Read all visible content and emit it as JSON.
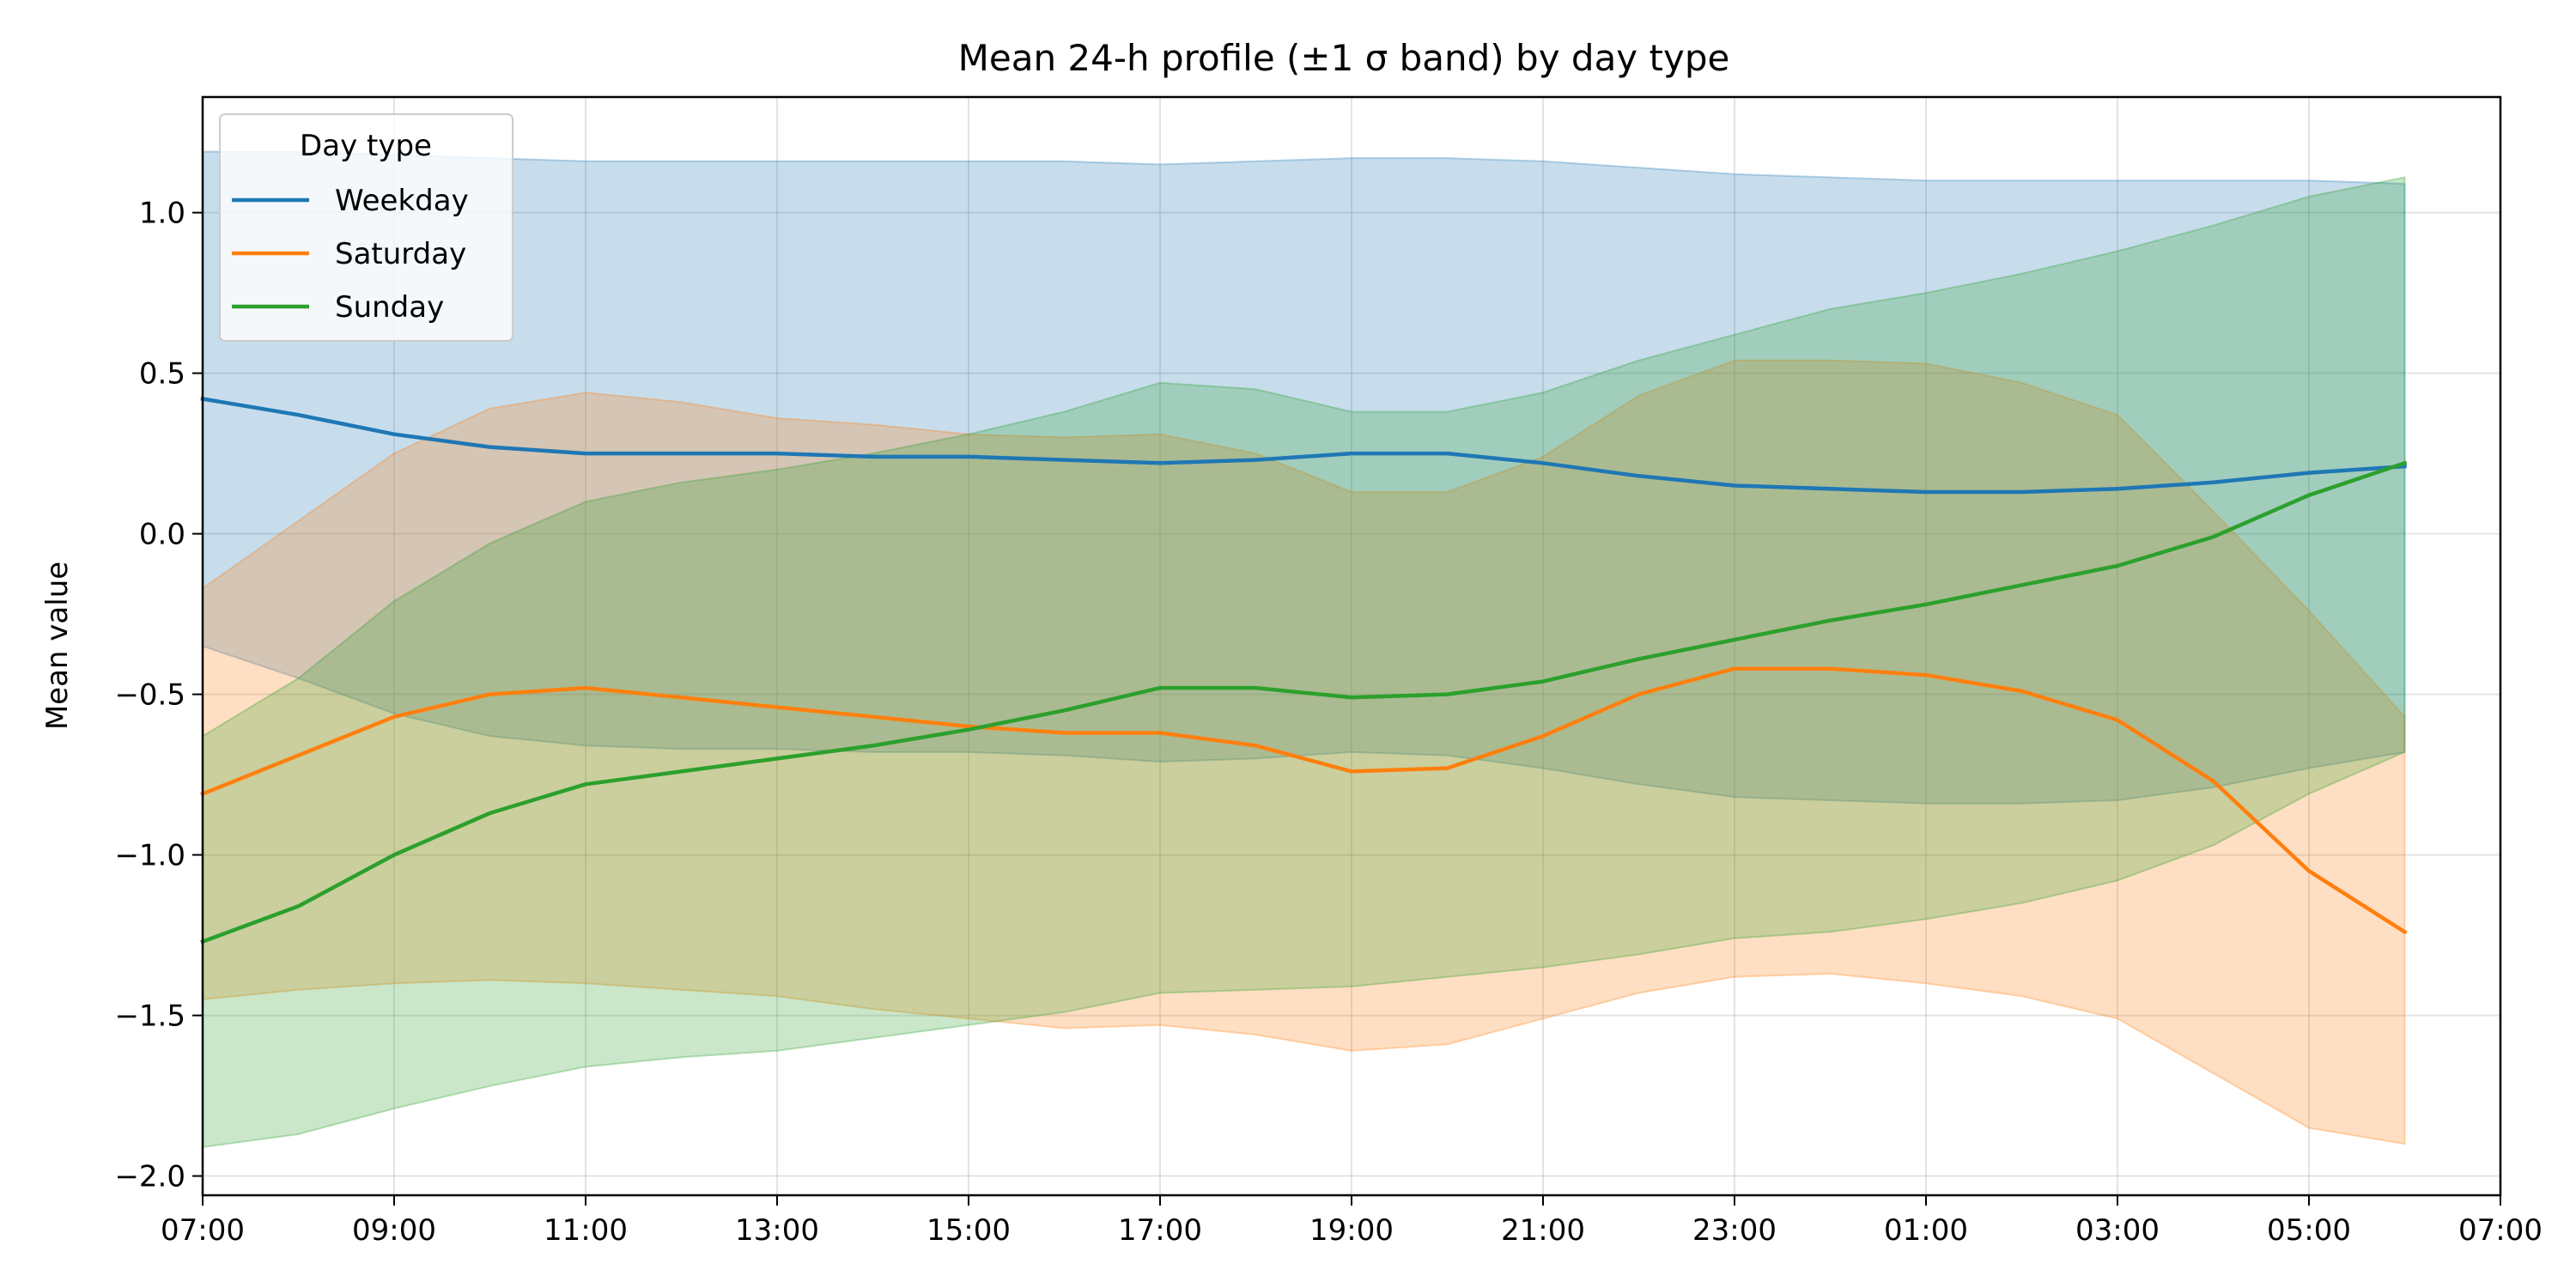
{
  "chart_data": {
    "type": "line",
    "title": "Mean 24-h profile (±1 σ band) by day type",
    "xlabel": "",
    "ylabel": "Mean value",
    "x": [
      "07:00",
      "08:00",
      "09:00",
      "10:00",
      "11:00",
      "12:00",
      "13:00",
      "14:00",
      "15:00",
      "16:00",
      "17:00",
      "18:00",
      "19:00",
      "20:00",
      "21:00",
      "22:00",
      "23:00",
      "00:00",
      "01:00",
      "02:00",
      "03:00",
      "04:00",
      "05:00",
      "06:00"
    ],
    "xticks": [
      "07:00",
      "09:00",
      "11:00",
      "13:00",
      "15:00",
      "17:00",
      "19:00",
      "21:00",
      "23:00",
      "01:00",
      "03:00",
      "05:00",
      "07:00"
    ],
    "xlim": [
      "07:00",
      "07:00 (next day)"
    ],
    "ylim": [
      -2.06,
      1.36
    ],
    "yticks": [
      1.0,
      0.5,
      0.0,
      -0.5,
      -1.0,
      -1.5,
      -2.0
    ],
    "ytick_labels": [
      "1.0",
      "0.5",
      "0.0",
      "−0.5",
      "−1.0",
      "−1.5",
      "−2.0"
    ],
    "grid": true,
    "legend": {
      "title": "Day type",
      "position": "top-left"
    },
    "series": [
      {
        "name": "Weekday",
        "color": "#1f77b4",
        "values": [
          0.42,
          0.37,
          0.31,
          0.27,
          0.25,
          0.25,
          0.25,
          0.24,
          0.24,
          0.23,
          0.22,
          0.23,
          0.25,
          0.25,
          0.22,
          0.18,
          0.15,
          0.14,
          0.13,
          0.13,
          0.14,
          0.16,
          0.19,
          0.21
        ],
        "upper": [
          1.19,
          1.19,
          1.18,
          1.17,
          1.16,
          1.16,
          1.16,
          1.16,
          1.16,
          1.16,
          1.15,
          1.16,
          1.17,
          1.17,
          1.16,
          1.14,
          1.12,
          1.11,
          1.1,
          1.1,
          1.1,
          1.1,
          1.1,
          1.09
        ],
        "lower": [
          -0.35,
          -0.45,
          -0.56,
          -0.63,
          -0.66,
          -0.67,
          -0.67,
          -0.68,
          -0.68,
          -0.69,
          -0.71,
          -0.7,
          -0.68,
          -0.69,
          -0.73,
          -0.78,
          -0.82,
          -0.83,
          -0.84,
          -0.84,
          -0.83,
          -0.79,
          -0.73,
          -0.68
        ]
      },
      {
        "name": "Saturday",
        "color": "#ff7f0e",
        "values": [
          -0.81,
          -0.69,
          -0.57,
          -0.5,
          -0.48,
          -0.51,
          -0.54,
          -0.57,
          -0.6,
          -0.62,
          -0.62,
          -0.66,
          -0.74,
          -0.73,
          -0.63,
          -0.5,
          -0.42,
          -0.42,
          -0.44,
          -0.49,
          -0.58,
          -0.77,
          -1.05,
          -1.24
        ],
        "upper": [
          -0.17,
          0.04,
          0.25,
          0.39,
          0.44,
          0.41,
          0.36,
          0.34,
          0.31,
          0.3,
          0.31,
          0.25,
          0.13,
          0.13,
          0.24,
          0.43,
          0.54,
          0.54,
          0.53,
          0.47,
          0.37,
          0.07,
          -0.24,
          -0.57
        ],
        "lower": [
          -1.45,
          -1.42,
          -1.4,
          -1.39,
          -1.4,
          -1.42,
          -1.44,
          -1.48,
          -1.51,
          -1.54,
          -1.53,
          -1.56,
          -1.61,
          -1.59,
          -1.51,
          -1.43,
          -1.38,
          -1.37,
          -1.4,
          -1.44,
          -1.51,
          -1.68,
          -1.85,
          -1.9
        ]
      },
      {
        "name": "Sunday",
        "color": "#2ca02c",
        "values": [
          -1.27,
          -1.16,
          -1.0,
          -0.87,
          -0.78,
          -0.74,
          -0.7,
          -0.66,
          -0.61,
          -0.55,
          -0.48,
          -0.48,
          -0.51,
          -0.5,
          -0.46,
          -0.39,
          -0.33,
          -0.27,
          -0.22,
          -0.16,
          -0.1,
          -0.01,
          0.12,
          0.22
        ],
        "upper": [
          -0.63,
          -0.45,
          -0.21,
          -0.03,
          0.1,
          0.16,
          0.2,
          0.25,
          0.31,
          0.38,
          0.47,
          0.45,
          0.38,
          0.38,
          0.44,
          0.54,
          0.62,
          0.7,
          0.75,
          0.81,
          0.88,
          0.96,
          1.05,
          1.11
        ],
        "lower": [
          -1.91,
          -1.87,
          -1.79,
          -1.72,
          -1.66,
          -1.63,
          -1.61,
          -1.57,
          -1.53,
          -1.49,
          -1.43,
          -1.42,
          -1.41,
          -1.38,
          -1.35,
          -1.31,
          -1.26,
          -1.24,
          -1.2,
          -1.15,
          -1.08,
          -0.97,
          -0.81,
          -0.68
        ]
      }
    ]
  }
}
